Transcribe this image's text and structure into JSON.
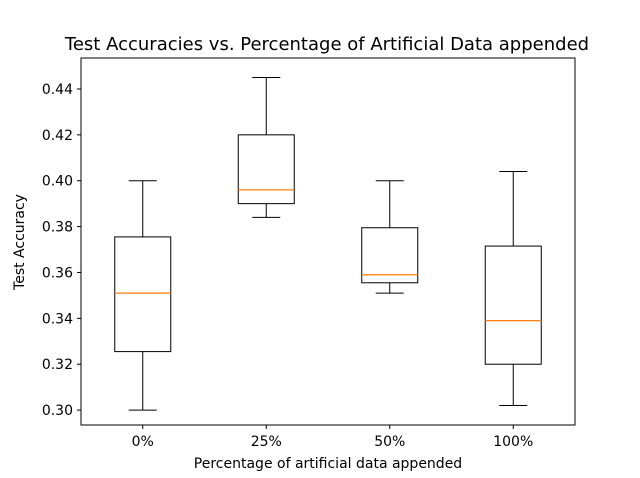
{
  "chart_data": {
    "type": "boxplot",
    "title": "Test Accuracies vs. Percentage of Artificial Data appended",
    "xlabel": "Percentage of artificial data appended",
    "ylabel": "Test Accuracy",
    "ylim": [
      0.2935,
      0.4535
    ],
    "yticks": [
      "0.30",
      "0.32",
      "0.34",
      "0.36",
      "0.38",
      "0.40",
      "0.42",
      "0.44"
    ],
    "ytick_values": [
      0.3,
      0.32,
      0.34,
      0.36,
      0.38,
      0.4,
      0.42,
      0.44
    ],
    "categories": [
      "0%",
      "25%",
      "50%",
      "100%"
    ],
    "boxes": [
      {
        "whisker_low": 0.3,
        "q1": 0.3255,
        "median": 0.351,
        "q3": 0.3755,
        "whisker_high": 0.4
      },
      {
        "whisker_low": 0.384,
        "q1": 0.39,
        "median": 0.396,
        "q3": 0.42,
        "whisker_high": 0.445
      },
      {
        "whisker_low": 0.351,
        "q1": 0.3555,
        "median": 0.359,
        "q3": 0.3795,
        "whisker_high": 0.4
      },
      {
        "whisker_low": 0.302,
        "q1": 0.32,
        "median": 0.339,
        "q3": 0.3715,
        "whisker_high": 0.404
      }
    ],
    "grid": false,
    "legend": "none",
    "colors": {
      "box": "#000000",
      "median": "#ff7f0e"
    }
  }
}
